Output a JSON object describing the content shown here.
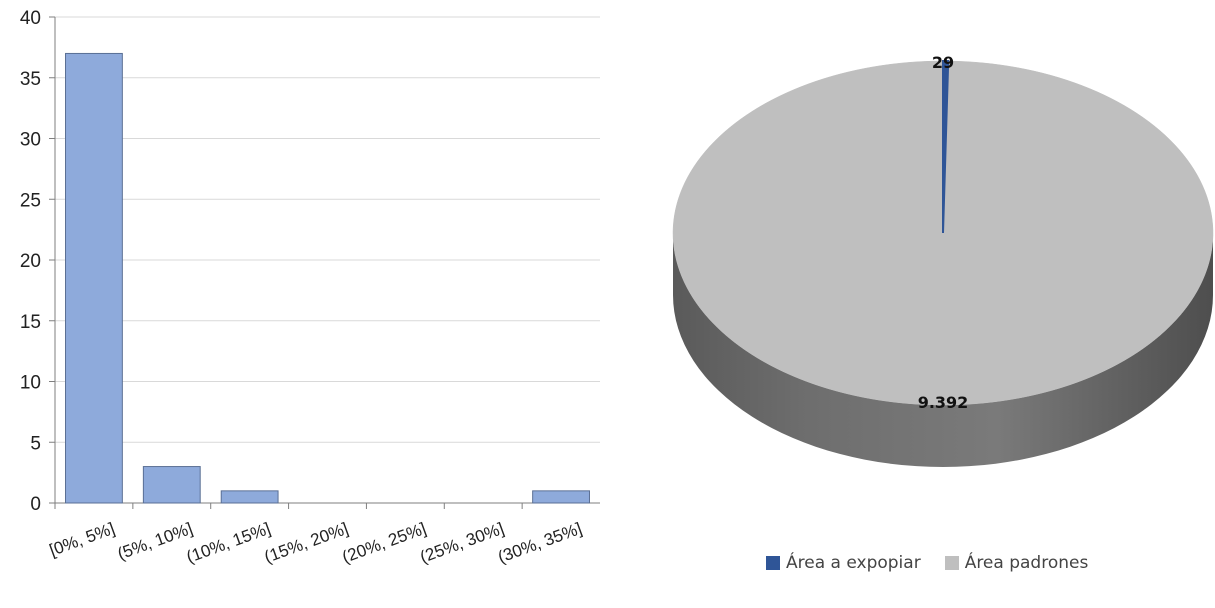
{
  "chart_data": [
    {
      "type": "bar",
      "categories": [
        "[0%, 5%]",
        "(5%, 10%]",
        "(10%, 15%]",
        "(15%, 20%]",
        "(20%, 25%]",
        "(25%, 30%]",
        "(30%, 35%]"
      ],
      "values": [
        37,
        3,
        1,
        0,
        0,
        0,
        1
      ],
      "yticks": [
        0,
        5,
        10,
        15,
        20,
        25,
        30,
        35,
        40
      ],
      "ylim": [
        0,
        40
      ],
      "grid": true,
      "bar_color": "#8eaadb",
      "bar_stroke": "#5a6f94"
    },
    {
      "type": "pie",
      "labels": [
        "Área a expopiar",
        "Área padrones"
      ],
      "values": [
        29,
        9392
      ],
      "data_labels": [
        "29",
        "9.392"
      ],
      "colors": [
        "#2f5597",
        "#bfbfbf"
      ],
      "legend_position": "bottom"
    }
  ]
}
